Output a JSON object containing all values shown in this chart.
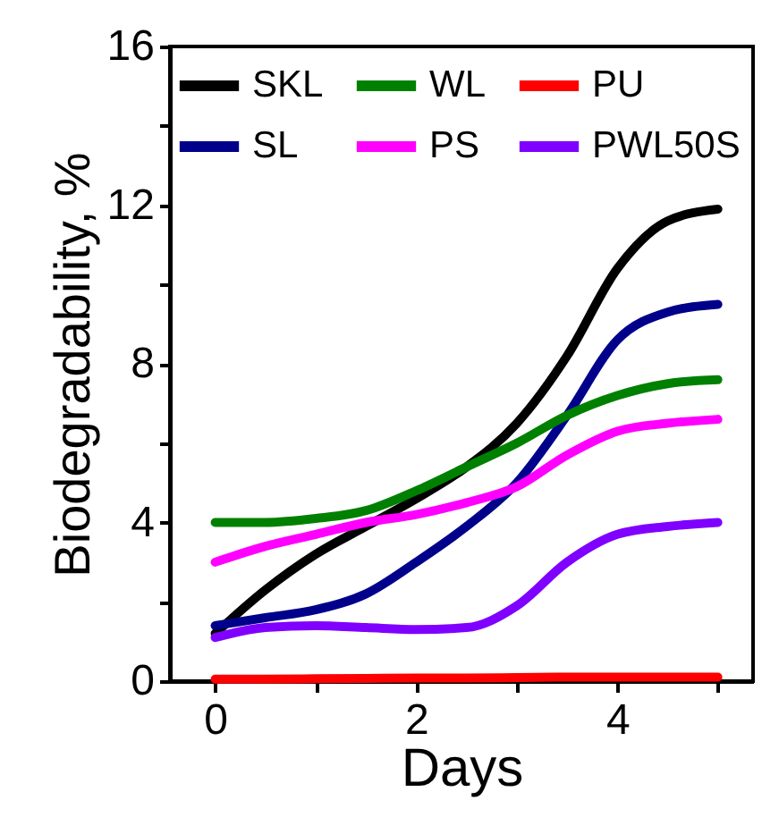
{
  "chart_data": {
    "type": "line",
    "xlabel": "Days",
    "ylabel": "Biodegradability, %",
    "x": [
      0,
      0.5,
      1,
      1.5,
      2,
      2.5,
      3,
      3.5,
      4,
      4.5,
      5
    ],
    "series": [
      {
        "name": "SKL",
        "color": "#000000",
        "values": [
          1.2,
          2.3,
          3.2,
          3.9,
          4.6,
          5.4,
          6.5,
          8.2,
          10.4,
          11.6,
          11.9
        ]
      },
      {
        "name": "SL",
        "color": "#00008b",
        "values": [
          1.4,
          1.6,
          1.8,
          2.2,
          3.0,
          3.9,
          5.0,
          6.7,
          8.6,
          9.3,
          9.5
        ]
      },
      {
        "name": "WL",
        "color": "#008000",
        "values": [
          4.0,
          4.0,
          4.1,
          4.3,
          4.8,
          5.4,
          6.0,
          6.7,
          7.2,
          7.5,
          7.6
        ]
      },
      {
        "name": "PS",
        "color": "#ff00ff",
        "values": [
          3.0,
          3.4,
          3.7,
          4.0,
          4.2,
          4.5,
          4.9,
          5.7,
          6.3,
          6.5,
          6.6
        ]
      },
      {
        "name": "PU",
        "color": "#ff0000",
        "values": [
          0.05,
          0.05,
          0.06,
          0.07,
          0.08,
          0.08,
          0.09,
          0.1,
          0.1,
          0.1,
          0.1
        ]
      },
      {
        "name": "PWL50S",
        "color": "#8000ff",
        "values": [
          1.1,
          1.35,
          1.4,
          1.35,
          1.3,
          1.35,
          1.9,
          3.0,
          3.7,
          3.9,
          4.0
        ]
      }
    ],
    "xlim": [
      -0.45,
      5.35
    ],
    "xticks": [
      0,
      {
        "value": 1,
        "label": null
      },
      2,
      {
        "value": 3,
        "label": null
      },
      4,
      {
        "value": 5,
        "label": null
      }
    ],
    "ylim": [
      0,
      16
    ],
    "yticks": [
      0,
      {
        "value": 2,
        "label": null
      },
      4,
      {
        "value": 6,
        "label": null
      },
      8,
      {
        "value": 10,
        "label": null
      },
      12,
      {
        "value": 14,
        "label": null
      },
      16
    ],
    "legend": "top left",
    "grid": false,
    "line_style": "solid",
    "marker": "none"
  }
}
